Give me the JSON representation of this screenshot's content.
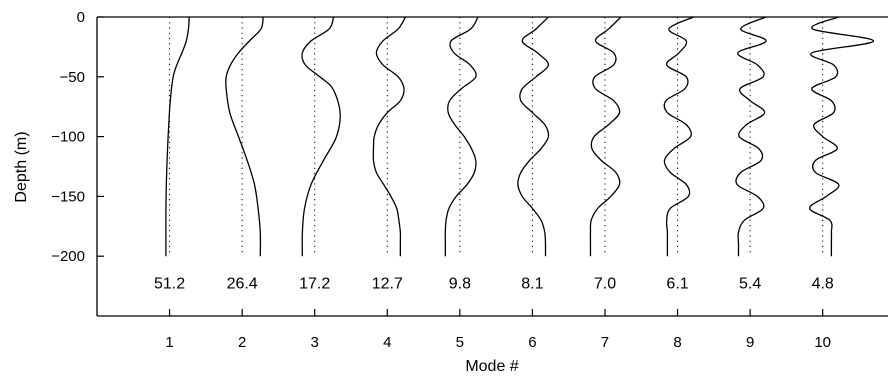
{
  "chart_data": {
    "type": "line",
    "title": "",
    "xlabel": "Mode #",
    "ylabel": "Depth (m)",
    "xlim": [
      0,
      10.9
    ],
    "ylim": [
      -250,
      0
    ],
    "x_ticks": [
      1,
      2,
      3,
      4,
      5,
      6,
      7,
      8,
      9,
      10
    ],
    "x_tick_labels": [
      "1",
      "2",
      "3",
      "4",
      "5",
      "6",
      "7",
      "8",
      "9",
      "10"
    ],
    "y_ticks": [
      0,
      -50,
      -100,
      -150,
      -200
    ],
    "y_tick_labels": [
      "0",
      "−50",
      "−100",
      "−150",
      "−200"
    ],
    "grid": false,
    "mode_baseline_style": "dotted vertical line at each mode number",
    "mode_values": [
      "51.2",
      "26.4",
      "17.2",
      "12.7",
      "9.8",
      "8.1",
      "7.0",
      "6.1",
      "5.4",
      "4.8"
    ],
    "mode_values_depth": -222,
    "series": [
      {
        "mode": 1,
        "depth": [
          0,
          -10,
          -20,
          -30,
          -40,
          -50,
          -70,
          -100,
          -130,
          -160,
          -200
        ],
        "x": [
          1.27,
          1.26,
          1.23,
          1.17,
          1.1,
          1.05,
          1.01,
          0.98,
          0.96,
          0.95,
          0.95
        ]
      },
      {
        "mode": 2,
        "depth": [
          0,
          -10,
          -20,
          -30,
          -40,
          -50,
          -60,
          -80,
          -100,
          -120,
          -140,
          -160,
          -180,
          -200
        ],
        "x": [
          2.29,
          2.26,
          2.1,
          1.95,
          1.84,
          1.78,
          1.78,
          1.83,
          1.95,
          2.07,
          2.17,
          2.22,
          2.25,
          2.25
        ]
      },
      {
        "mode": 3,
        "depth": [
          0,
          -10,
          -20,
          -30,
          -40,
          -50,
          -60,
          -80,
          -100,
          -120,
          -140,
          -160,
          -180,
          -200
        ],
        "x": [
          3.26,
          3.2,
          2.95,
          2.83,
          2.87,
          3.07,
          3.25,
          3.35,
          3.3,
          3.12,
          2.95,
          2.86,
          2.83,
          2.83
        ]
      },
      {
        "mode": 4,
        "depth": [
          0,
          -10,
          -20,
          -30,
          -40,
          -50,
          -60,
          -70,
          -80,
          -90,
          -100,
          -110,
          -120,
          -130,
          -140,
          -150,
          -160,
          -170,
          -180,
          -190,
          -200
        ],
        "x": [
          4.25,
          4.15,
          3.94,
          3.85,
          3.94,
          4.15,
          4.23,
          4.18,
          4.0,
          3.88,
          3.82,
          3.81,
          3.81,
          3.85,
          3.95,
          4.05,
          4.13,
          4.16,
          4.18,
          4.18,
          4.18
        ]
      },
      {
        "mode": 5,
        "depth": [
          0,
          -10,
          -20,
          -30,
          -40,
          -50,
          -60,
          -70,
          -80,
          -90,
          -100,
          -110,
          -120,
          -130,
          -140,
          -150,
          -160,
          -170,
          -180,
          -190,
          -200
        ],
        "x": [
          5.25,
          5.15,
          4.88,
          4.92,
          5.14,
          5.22,
          5.02,
          4.86,
          4.84,
          4.93,
          5.06,
          5.16,
          5.22,
          5.2,
          5.1,
          4.95,
          4.85,
          4.81,
          4.8,
          4.8,
          4.8
        ]
      },
      {
        "mode": 6,
        "depth": [
          0,
          -10,
          -20,
          -30,
          -40,
          -50,
          -60,
          -70,
          -80,
          -90,
          -100,
          -110,
          -120,
          -130,
          -140,
          -150,
          -160,
          -170,
          -180,
          -190,
          -200
        ],
        "x": [
          6.22,
          6.05,
          5.86,
          6.07,
          6.22,
          6.05,
          5.86,
          5.84,
          6.0,
          6.17,
          6.22,
          6.12,
          5.96,
          5.84,
          5.8,
          5.86,
          6.0,
          6.12,
          6.17,
          6.18,
          6.18
        ]
      },
      {
        "mode": 7,
        "depth": [
          0,
          -10,
          -20,
          -30,
          -40,
          -50,
          -60,
          -70,
          -80,
          -90,
          -100,
          -110,
          -120,
          -130,
          -140,
          -150,
          -160,
          -170,
          -180,
          -190,
          -200
        ],
        "x": [
          7.22,
          7.05,
          6.87,
          7.12,
          7.12,
          6.86,
          6.87,
          7.12,
          7.2,
          7.05,
          6.85,
          6.82,
          6.95,
          7.15,
          7.2,
          7.08,
          6.9,
          6.81,
          6.8,
          6.8,
          6.8
        ]
      },
      {
        "mode": 8,
        "depth": [
          0,
          -10,
          -20,
          -30,
          -40,
          -50,
          -60,
          -70,
          -80,
          -90,
          -100,
          -110,
          -120,
          -130,
          -140,
          -150,
          -160,
          -170,
          -180,
          -190,
          -200
        ],
        "x": [
          8.22,
          7.88,
          8.12,
          8.02,
          7.85,
          8.12,
          8.1,
          7.84,
          7.86,
          8.12,
          8.18,
          7.95,
          7.82,
          7.9,
          8.12,
          8.15,
          7.9,
          7.85,
          7.86,
          7.86,
          7.86
        ]
      },
      {
        "mode": 9,
        "depth": [
          0,
          -10,
          -20,
          -30,
          -40,
          -50,
          -60,
          -70,
          -80,
          -90,
          -100,
          -110,
          -120,
          -130,
          -140,
          -150,
          -160,
          -170,
          -180,
          -190,
          -200
        ],
        "x": [
          9.22,
          8.87,
          9.22,
          8.83,
          9.1,
          9.18,
          8.86,
          9.0,
          9.2,
          8.95,
          8.85,
          9.12,
          9.15,
          8.87,
          8.82,
          9.1,
          9.18,
          8.92,
          8.84,
          8.84,
          8.84
        ]
      },
      {
        "mode": 10,
        "depth": [
          0,
          -10,
          -20,
          -30,
          -40,
          -50,
          -60,
          -70,
          -80,
          -90,
          -100,
          -110,
          -120,
          -130,
          -140,
          -150,
          -160,
          -170,
          -180,
          -190,
          -200
        ],
        "x": [
          10.22,
          9.86,
          10.7,
          9.85,
          10.15,
          10.18,
          9.85,
          10.12,
          10.15,
          9.88,
          10.0,
          10.2,
          9.9,
          9.9,
          10.22,
          10.05,
          9.82,
          10.1,
          10.12,
          10.12,
          10.12
        ]
      }
    ]
  }
}
